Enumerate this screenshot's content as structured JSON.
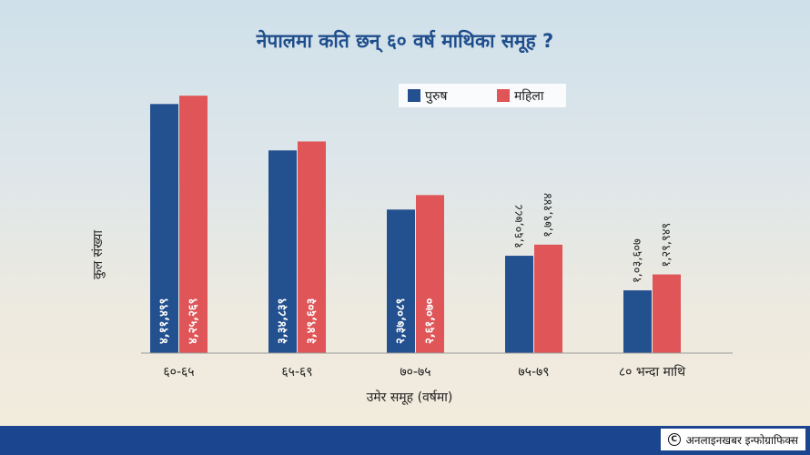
{
  "chart_data": {
    "type": "bar",
    "title": "नेपालमा कति छन् ६० वर्ष माथिका समूह ?",
    "xlabel": "उमेर समूह (वर्षमा)",
    "ylabel": "कुल संख्या",
    "categories": [
      "६०-६५",
      "६५-६९",
      "७०-७५",
      "७५-७९",
      "८० भन्दा माथि"
    ],
    "series": [
      {
        "name": "पुरुष",
        "color": "#23508f",
        "values": [
          411499,
          334839,
          237089,
          160788,
          103607
        ],
        "labels": [
          "४,११,४९९",
          "३,३४,८३९",
          "२,३७,०८९",
          "१,६०,७८८",
          "१,०३,६०७"
        ]
      },
      {
        "name": "महिला",
        "color": "#e05558",
        "values": [
          425269,
          349603,
          261070,
          179144,
          129949
        ],
        "labels": [
          "४,२५,२६९",
          "३,४९,६०३",
          "२,६१,०७०",
          "१,७९,१४४",
          "१,२९,९४९"
        ]
      }
    ],
    "ylim": [
      0,
      430000
    ],
    "grid": false,
    "legend_position": "top-right"
  },
  "footer": {
    "credit": "अनलाइनखबर इन्फोग्राफिक्स",
    "icon": "copyright-icon"
  }
}
